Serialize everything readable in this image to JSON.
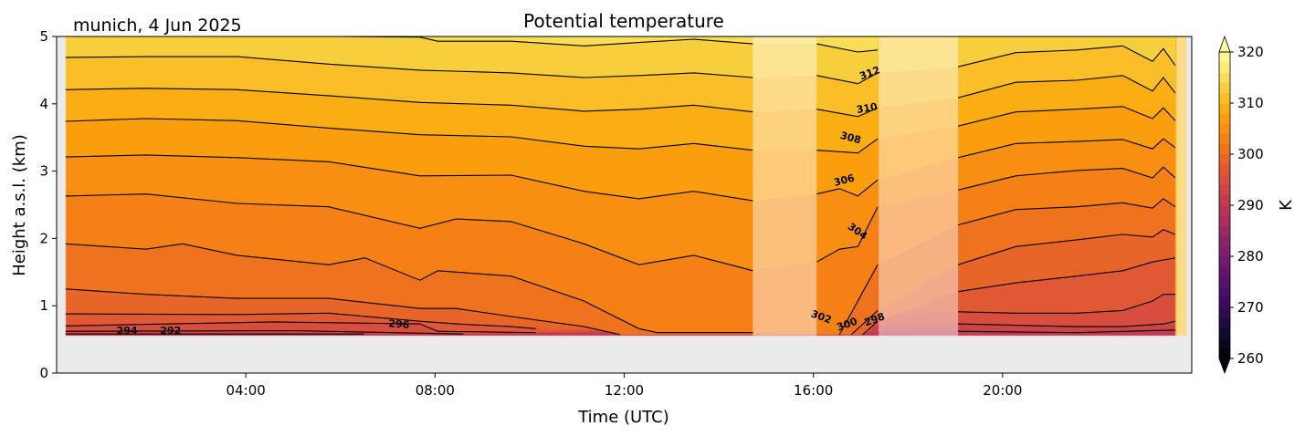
{
  "chart_data": {
    "type": "contour",
    "title": "Potential temperature",
    "annotation": "munich, 4 Jun 2025",
    "xlabel": "Time (UTC)",
    "ylabel": "Height a.s.l. (km)",
    "xlim": [
      0,
      24
    ],
    "ylim": [
      0,
      5
    ],
    "xticks": [
      {
        "value": 4,
        "label": "04:00"
      },
      {
        "value": 8,
        "label": "08:00"
      },
      {
        "value": 12,
        "label": "12:00"
      },
      {
        "value": 16,
        "label": "16:00"
      },
      {
        "value": 20,
        "label": "20:00"
      }
    ],
    "yticks": [
      {
        "value": 0,
        "label": "0"
      },
      {
        "value": 1,
        "label": "1"
      },
      {
        "value": 2,
        "label": "2"
      },
      {
        "value": 3,
        "label": "3"
      },
      {
        "value": 4,
        "label": "4"
      },
      {
        "value": 5,
        "label": "5"
      }
    ],
    "data_extent": {
      "time": [
        0.19,
        23.88
      ],
      "height": [
        0.55,
        5.0
      ]
    },
    "masked_periods": [
      [
        14.72,
        16.07
      ],
      [
        17.38,
        19.06
      ],
      [
        23.68,
        23.88
      ]
    ],
    "background_color": "#ebebeb",
    "colormap": "inferno",
    "colorbar": {
      "label": "K",
      "min": 260,
      "max": 320,
      "step": 2,
      "extend": "both",
      "ticks": [
        {
          "value": 260,
          "label": "260"
        },
        {
          "value": 270,
          "label": "270"
        },
        {
          "value": 280,
          "label": "280"
        },
        {
          "value": 290,
          "label": "290"
        },
        {
          "value": 300,
          "label": "300"
        },
        {
          "value": 310,
          "label": "310"
        },
        {
          "value": 320,
          "label": "320"
        }
      ]
    },
    "contours": [
      {
        "level": 314,
        "segments": [
          [
            [
              5.95,
              5.0
            ],
            [
              7.68,
              4.99
            ],
            [
              8.06,
              4.93
            ],
            [
              9.61,
              4.93
            ],
            [
              11.15,
              4.86
            ],
            [
              12.31,
              4.91
            ],
            [
              13.47,
              4.96
            ],
            [
              14.72,
              4.89
            ]
          ],
          [
            [
              16.07,
              4.89
            ],
            [
              16.94,
              4.77
            ],
            [
              17.36,
              4.8
            ]
          ]
        ]
      },
      {
        "level": 312,
        "segments": [
          [
            [
              0.19,
              4.69
            ],
            [
              1.89,
              4.7
            ],
            [
              3.82,
              4.7
            ],
            [
              5.75,
              4.59
            ],
            [
              7.68,
              4.5
            ],
            [
              9.61,
              4.46
            ],
            [
              11.15,
              4.39
            ],
            [
              12.31,
              4.42
            ],
            [
              13.47,
              4.46
            ],
            [
              14.72,
              4.39
            ]
          ],
          [
            [
              16.07,
              4.42
            ],
            [
              16.94,
              4.3
            ],
            [
              17.36,
              4.46
            ]
          ],
          [
            [
              19.06,
              4.55
            ],
            [
              20.28,
              4.76
            ],
            [
              21.57,
              4.8
            ],
            [
              22.54,
              4.86
            ],
            [
              23.17,
              4.63
            ],
            [
              23.4,
              4.82
            ],
            [
              23.65,
              4.57
            ]
          ]
        ]
      },
      {
        "level": 310,
        "segments": [
          [
            [
              0.19,
              4.21
            ],
            [
              1.89,
              4.23
            ],
            [
              3.82,
              4.21
            ],
            [
              5.75,
              4.12
            ],
            [
              7.68,
              4.02
            ],
            [
              9.61,
              3.98
            ],
            [
              11.15,
              3.89
            ],
            [
              12.31,
              3.92
            ],
            [
              13.47,
              3.98
            ],
            [
              14.72,
              3.88
            ]
          ],
          [
            [
              16.07,
              3.92
            ],
            [
              16.94,
              3.81
            ],
            [
              17.36,
              3.94
            ]
          ],
          [
            [
              19.06,
              4.09
            ],
            [
              20.28,
              4.32
            ],
            [
              21.57,
              4.35
            ],
            [
              22.54,
              4.42
            ],
            [
              23.17,
              4.19
            ],
            [
              23.4,
              4.39
            ],
            [
              23.65,
              4.16
            ]
          ]
        ]
      },
      {
        "level": 308,
        "segments": [
          [
            [
              0.19,
              3.74
            ],
            [
              1.89,
              3.78
            ],
            [
              3.82,
              3.75
            ],
            [
              5.75,
              3.64
            ],
            [
              7.68,
              3.54
            ],
            [
              9.61,
              3.51
            ],
            [
              11.15,
              3.37
            ],
            [
              12.31,
              3.33
            ],
            [
              13.47,
              3.41
            ],
            [
              14.72,
              3.31
            ]
          ],
          [
            [
              16.07,
              3.31
            ],
            [
              16.94,
              3.27
            ],
            [
              17.36,
              3.48
            ]
          ],
          [
            [
              19.06,
              3.67
            ],
            [
              20.28,
              3.88
            ],
            [
              21.57,
              3.92
            ],
            [
              22.54,
              3.96
            ],
            [
              23.17,
              3.78
            ],
            [
              23.4,
              3.94
            ],
            [
              23.65,
              3.75
            ]
          ]
        ]
      },
      {
        "level": 306,
        "segments": [
          [
            [
              0.19,
              3.21
            ],
            [
              1.89,
              3.24
            ],
            [
              3.82,
              3.2
            ],
            [
              5.75,
              3.14
            ],
            [
              7.68,
              2.93
            ],
            [
              9.61,
              2.94
            ],
            [
              11.15,
              2.7
            ],
            [
              12.31,
              2.59
            ],
            [
              13.47,
              2.7
            ],
            [
              14.72,
              2.56
            ]
          ],
          [
            [
              16.07,
              2.66
            ],
            [
              16.55,
              2.74
            ],
            [
              16.94,
              2.63
            ],
            [
              17.36,
              2.87
            ]
          ],
          [
            [
              19.06,
              3.2
            ],
            [
              20.28,
              3.41
            ],
            [
              21.57,
              3.44
            ],
            [
              22.54,
              3.47
            ],
            [
              23.17,
              3.33
            ],
            [
              23.4,
              3.48
            ],
            [
              23.65,
              3.35
            ]
          ]
        ]
      },
      {
        "level": 304,
        "segments": [
          [
            [
              0.19,
              2.63
            ],
            [
              1.89,
              2.66
            ],
            [
              3.82,
              2.52
            ],
            [
              5.75,
              2.47
            ],
            [
              7.68,
              2.15
            ],
            [
              8.45,
              2.29
            ],
            [
              9.61,
              2.25
            ],
            [
              11.15,
              1.92
            ],
            [
              12.31,
              1.61
            ],
            [
              13.47,
              1.75
            ],
            [
              14.24,
              1.61
            ],
            [
              14.72,
              1.52
            ]
          ],
          [
            [
              16.07,
              1.65
            ],
            [
              16.55,
              1.84
            ],
            [
              16.94,
              1.88
            ],
            [
              17.36,
              2.47
            ]
          ],
          [
            [
              19.06,
              2.72
            ],
            [
              20.28,
              2.93
            ],
            [
              21.57,
              3.01
            ],
            [
              22.54,
              3.04
            ],
            [
              23.17,
              2.9
            ],
            [
              23.4,
              3.06
            ],
            [
              23.65,
              2.9
            ]
          ]
        ]
      },
      {
        "level": 302,
        "segments": [
          [
            [
              0.19,
              1.92
            ],
            [
              1.89,
              1.84
            ],
            [
              2.66,
              1.92
            ],
            [
              3.82,
              1.75
            ],
            [
              5.75,
              1.61
            ],
            [
              6.52,
              1.71
            ],
            [
              7.68,
              1.38
            ],
            [
              8.06,
              1.52
            ],
            [
              9.61,
              1.44
            ],
            [
              11.15,
              1.07
            ],
            [
              12.31,
              0.66
            ],
            [
              12.7,
              0.6
            ],
            [
              14.72,
              0.6
            ]
          ],
          [
            [
              16.55,
              0.57
            ],
            [
              17.36,
              1.61
            ]
          ],
          [
            [
              19.06,
              2.2
            ],
            [
              20.28,
              2.43
            ],
            [
              21.57,
              2.47
            ],
            [
              22.54,
              2.53
            ],
            [
              23.17,
              2.45
            ],
            [
              23.4,
              2.59
            ],
            [
              23.65,
              2.47
            ]
          ]
        ]
      },
      {
        "level": 300,
        "segments": [
          [
            [
              0.19,
              1.25
            ],
            [
              1.89,
              1.17
            ],
            [
              3.82,
              1.11
            ],
            [
              5.75,
              1.11
            ],
            [
              7.68,
              0.96
            ],
            [
              8.45,
              0.96
            ],
            [
              9.61,
              0.84
            ],
            [
              11.15,
              0.69
            ],
            [
              11.92,
              0.57
            ]
          ],
          [
            [
              16.8,
              0.57
            ],
            [
              17.36,
              0.93
            ]
          ],
          [
            [
              19.06,
              1.61
            ],
            [
              20.28,
              1.88
            ],
            [
              21.57,
              1.98
            ],
            [
              22.54,
              2.06
            ],
            [
              23.17,
              2.02
            ],
            [
              23.4,
              2.13
            ],
            [
              23.65,
              2.06
            ]
          ]
        ]
      },
      {
        "level": 298,
        "segments": [
          [
            [
              0.19,
              0.88
            ],
            [
              3.82,
              0.87
            ],
            [
              5.75,
              0.89
            ],
            [
              7.68,
              0.77
            ],
            [
              8.45,
              0.73
            ],
            [
              9.61,
              0.69
            ],
            [
              10.13,
              0.66
            ]
          ],
          [
            [
              17.04,
              0.57
            ],
            [
              17.36,
              0.77
            ]
          ],
          [
            [
              19.06,
              1.21
            ],
            [
              20.28,
              1.34
            ],
            [
              21.57,
              1.44
            ],
            [
              22.54,
              1.52
            ],
            [
              23.17,
              1.65
            ],
            [
              23.4,
              1.68
            ],
            [
              23.65,
              1.71
            ]
          ]
        ]
      },
      {
        "level": 296,
        "segments": [
          [
            [
              0.19,
              0.7
            ],
            [
              4.6,
              0.76
            ],
            [
              7.68,
              0.73
            ],
            [
              8.06,
              0.62
            ],
            [
              10.13,
              0.6
            ]
          ],
          [
            [
              19.06,
              0.91
            ],
            [
              20.28,
              0.89
            ],
            [
              21.57,
              0.89
            ],
            [
              22.54,
              0.93
            ],
            [
              23.17,
              1.07
            ],
            [
              23.4,
              1.17
            ],
            [
              23.65,
              1.17
            ]
          ]
        ]
      },
      {
        "level": 294,
        "segments": [
          [
            [
              0.19,
              0.62
            ],
            [
              5.0,
              0.63
            ],
            [
              8.6,
              0.58
            ]
          ],
          [
            [
              19.06,
              0.73
            ],
            [
              21.57,
              0.69
            ],
            [
              22.54,
              0.69
            ],
            [
              23.4,
              0.73
            ],
            [
              23.65,
              0.77
            ]
          ]
        ]
      },
      {
        "level": 292,
        "segments": [
          [
            [
              0.19,
              0.58
            ],
            [
              6.5,
              0.58
            ]
          ],
          [
            [
              19.06,
              0.62
            ],
            [
              21.57,
              0.6
            ],
            [
              23.65,
              0.64
            ]
          ]
        ]
      }
    ],
    "contour_labels": [
      {
        "text": "294",
        "time": 1.49,
        "height": 0.64
      },
      {
        "text": "292",
        "time": 2.41,
        "height": 0.64
      },
      {
        "text": "296",
        "time": 7.24,
        "height": 0.73
      },
      {
        "text": "302",
        "time": 16.17,
        "height": 0.84
      },
      {
        "text": "300",
        "time": 16.71,
        "height": 0.73
      },
      {
        "text": "298",
        "time": 17.29,
        "height": 0.8
      },
      {
        "text": "304",
        "time": 16.94,
        "height": 2.11
      },
      {
        "text": "306",
        "time": 16.65,
        "height": 2.87
      },
      {
        "text": "308",
        "time": 16.79,
        "height": 3.5
      },
      {
        "text": "310",
        "time": 17.13,
        "height": 3.94
      },
      {
        "text": "312",
        "time": 17.19,
        "height": 4.46
      }
    ]
  }
}
